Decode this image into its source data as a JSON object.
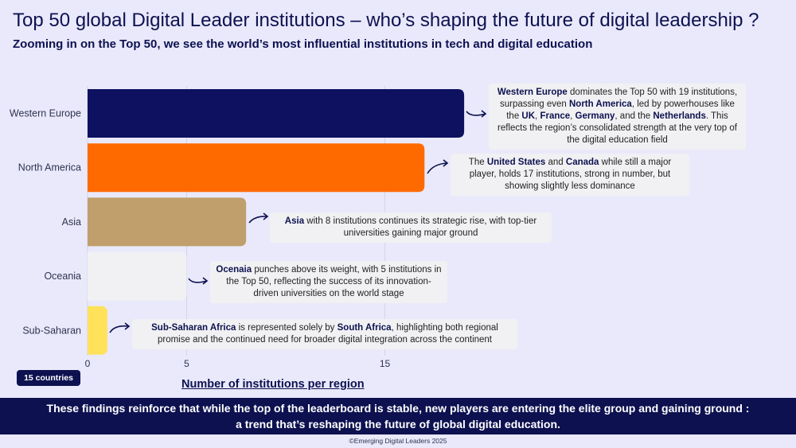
{
  "header": {
    "title": "Top 50 global Digital Leader institutions – who’s shaping the future of digital leadership ?",
    "subtitle": "Zooming in on the Top 50, we see the world’s most influential institutions in tech and digital education"
  },
  "chart_data": {
    "type": "bar",
    "orientation": "horizontal",
    "categories": [
      "Western Europe",
      "North America",
      "Asia",
      "Oceania",
      "Sub-Saharan"
    ],
    "values": [
      19,
      17,
      8,
      5,
      1
    ],
    "colors": [
      "#0d1160",
      "#ff6a00",
      "#c09f6c",
      "#f1f1f3",
      "#ffe25a"
    ],
    "xlabel": "Number of institutions per region",
    "xticks": [
      0,
      5,
      15
    ],
    "xlim": [
      0,
      20
    ],
    "grid": "vertical"
  },
  "badge": {
    "text": "15 countries"
  },
  "notes": {
    "western_europe": [
      {
        "t": "Western Europe",
        "b": true
      },
      {
        "t": " dominates the Top 50 with 19 institutions, surpassing even "
      },
      {
        "t": "North America",
        "b": true
      },
      {
        "t": ", led by powerhouses like the "
      },
      {
        "t": "UK",
        "b": true
      },
      {
        "t": ", "
      },
      {
        "t": "France",
        "b": true
      },
      {
        "t": ", "
      },
      {
        "t": "Germany",
        "b": true
      },
      {
        "t": ", and the "
      },
      {
        "t": "Netherlands",
        "b": true
      },
      {
        "t": ". This reflects the region’s consolidated strength at the very top of the digital education field"
      }
    ],
    "north_america": [
      {
        "t": "The "
      },
      {
        "t": "United States",
        "b": true
      },
      {
        "t": " and "
      },
      {
        "t": "Canada",
        "b": true
      },
      {
        "t": " while still a major player, holds 17 institutions, strong in number, but showing slightly less dominance"
      }
    ],
    "asia": [
      {
        "t": "Asia",
        "b": true
      },
      {
        "t": " with 8 institutions continues its strategic rise, with top-tier universities gaining major ground"
      }
    ],
    "oceania": [
      {
        "t": "Ocenaia",
        "b": true
      },
      {
        "t": " punches above its weight, with 5 institutions in the Top 50, reflecting the success of its innovation-driven universities on the world stage"
      }
    ],
    "sub_saharan": [
      {
        "t": "Sub-Saharan Africa",
        "b": true
      },
      {
        "t": " is represented solely by "
      },
      {
        "t": "South Africa",
        "b": true
      },
      {
        "t": ", highlighting both regional promise and the continued need for broader digital integration across the continent"
      }
    ]
  },
  "banner": {
    "line1": "These findings reinforce that while the top of the leaderboard is stable, new players are entering the elite group and gaining ground :",
    "line2": "a trend that’s reshaping the future of global digital education."
  },
  "footer": {
    "text": "©Emerging Digital Leaders 2025"
  }
}
